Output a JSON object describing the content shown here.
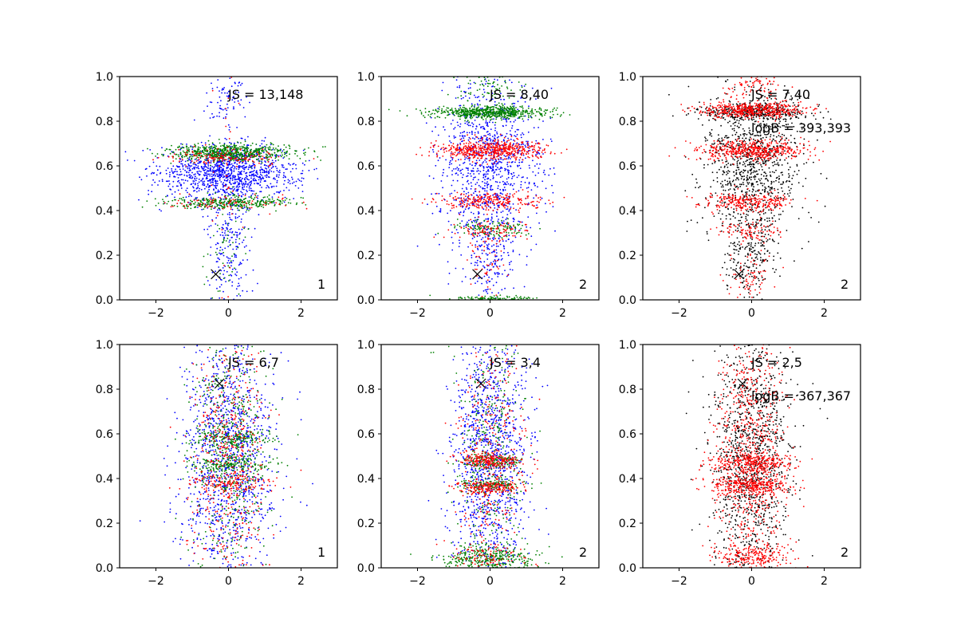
{
  "colors": {
    "blue": "#0000ff",
    "green": "#008000",
    "red": "#ff0000",
    "black": "#000000"
  },
  "chart_data": [
    {
      "type": "scatter",
      "xlim": [
        -3,
        3
      ],
      "ylim": [
        0,
        1
      ],
      "xticks": [
        -2,
        0,
        2
      ],
      "yticks": [
        0.0,
        0.2,
        0.4,
        0.6,
        0.8,
        1.0
      ],
      "xtick_labels": [
        "−2",
        "0",
        "2"
      ],
      "ytick_labels": [
        "0.0",
        "0.2",
        "0.4",
        "0.6",
        "0.8",
        "1.0"
      ],
      "annotation": "JS = 13,148",
      "annotation2": "",
      "corner_label": "1",
      "marker": {
        "x": -0.35,
        "y": 0.115,
        "symbol": "x"
      },
      "series": [
        {
          "name": "blue",
          "color": "blue",
          "clusters": [
            {
              "cy": 0.57,
              "sy": 0.06,
              "sx": 0.95,
              "n": 1100
            },
            {
              "cy": 0.3,
              "sy": 0.22,
              "sx": 0.35,
              "n": 300
            },
            {
              "cy": 0.9,
              "sy": 0.08,
              "sx": 0.3,
              "n": 80
            }
          ]
        },
        {
          "name": "green",
          "color": "green",
          "clusters": [
            {
              "cy": 0.66,
              "sy": 0.018,
              "sx": 0.85,
              "n": 650
            },
            {
              "cy": 0.435,
              "sy": 0.014,
              "sx": 0.85,
              "n": 320
            },
            {
              "cy": 0.25,
              "sy": 0.15,
              "sx": 0.3,
              "n": 60
            }
          ]
        },
        {
          "name": "red",
          "color": "red",
          "clusters": [
            {
              "cy": 0.64,
              "sy": 0.02,
              "sx": 0.8,
              "n": 140
            },
            {
              "cy": 0.43,
              "sy": 0.018,
              "sx": 0.8,
              "n": 80
            },
            {
              "cy": 0.6,
              "sy": 0.3,
              "sx": 0.3,
              "n": 40
            }
          ]
        }
      ]
    },
    {
      "type": "scatter",
      "xlim": [
        -3,
        3
      ],
      "ylim": [
        0,
        1
      ],
      "xticks": [
        -2,
        0,
        2
      ],
      "yticks": [
        0.0,
        0.2,
        0.4,
        0.6,
        0.8,
        1.0
      ],
      "xtick_labels": [
        "−2",
        "0",
        "2"
      ],
      "ytick_labels": [
        "0.0",
        "0.2",
        "0.4",
        "0.6",
        "0.8",
        "1.0"
      ],
      "annotation": "JS = 8,40",
      "annotation2": "",
      "corner_label": "2",
      "marker": {
        "x": -0.35,
        "y": 0.115,
        "symbol": "x"
      },
      "series": [
        {
          "name": "blue",
          "color": "blue",
          "clusters": [
            {
              "cy": 0.6,
              "sy": 0.18,
              "sx": 0.7,
              "n": 1000
            },
            {
              "cy": 0.2,
              "sy": 0.12,
              "sx": 0.35,
              "n": 200
            }
          ]
        },
        {
          "name": "green",
          "color": "green",
          "clusters": [
            {
              "cy": 0.84,
              "sy": 0.015,
              "sx": 0.8,
              "n": 650
            },
            {
              "cy": 0.32,
              "sy": 0.02,
              "sx": 0.5,
              "n": 120
            },
            {
              "cy": 0.005,
              "sy": 0.006,
              "sx": 0.6,
              "n": 120
            },
            {
              "cy": 0.95,
              "sy": 0.04,
              "sx": 0.5,
              "n": 80
            }
          ]
        },
        {
          "name": "red",
          "color": "red",
          "clusters": [
            {
              "cy": 0.67,
              "sy": 0.022,
              "sx": 0.75,
              "n": 550
            },
            {
              "cy": 0.44,
              "sy": 0.02,
              "sx": 0.7,
              "n": 250
            },
            {
              "cy": 0.31,
              "sy": 0.02,
              "sx": 0.5,
              "n": 90
            },
            {
              "cy": 0.2,
              "sy": 0.1,
              "sx": 0.3,
              "n": 60
            }
          ]
        }
      ]
    },
    {
      "type": "scatter",
      "xlim": [
        -3,
        3
      ],
      "ylim": [
        0,
        1
      ],
      "xticks": [
        -2,
        0,
        2
      ],
      "yticks": [
        0.0,
        0.2,
        0.4,
        0.6,
        0.8,
        1.0
      ],
      "xtick_labels": [
        "−2",
        "0",
        "2"
      ],
      "ytick_labels": [
        "0.0",
        "0.2",
        "0.4",
        "0.6",
        "0.8",
        "1.0"
      ],
      "annotation": "JS = 7,40",
      "annotation2": "logB = 393,393",
      "corner_label": "2",
      "marker": {
        "x": -0.35,
        "y": 0.115,
        "symbol": "x"
      },
      "series": [
        {
          "name": "black",
          "color": "black",
          "clusters": [
            {
              "cy": 0.6,
              "sy": 0.18,
              "sx": 0.7,
              "n": 1000
            },
            {
              "cy": 0.2,
              "sy": 0.12,
              "sx": 0.35,
              "n": 200
            },
            {
              "cy": 0.84,
              "sy": 0.02,
              "sx": 0.8,
              "n": 350
            }
          ]
        },
        {
          "name": "red",
          "color": "red",
          "clusters": [
            {
              "cy": 0.85,
              "sy": 0.018,
              "sx": 0.7,
              "n": 500
            },
            {
              "cy": 0.67,
              "sy": 0.022,
              "sx": 0.7,
              "n": 500
            },
            {
              "cy": 0.44,
              "sy": 0.02,
              "sx": 0.65,
              "n": 280
            },
            {
              "cy": 0.31,
              "sy": 0.02,
              "sx": 0.45,
              "n": 90
            },
            {
              "cy": 0.1,
              "sy": 0.08,
              "sx": 0.3,
              "n": 80
            },
            {
              "cy": 0.95,
              "sy": 0.03,
              "sx": 0.4,
              "n": 80
            }
          ]
        }
      ]
    },
    {
      "type": "scatter",
      "xlim": [
        -3,
        3
      ],
      "ylim": [
        0,
        1
      ],
      "xticks": [
        -2,
        0,
        2
      ],
      "yticks": [
        0.0,
        0.2,
        0.4,
        0.6,
        0.8,
        1.0
      ],
      "xtick_labels": [
        "−2",
        "0",
        "2"
      ],
      "ytick_labels": [
        "0.0",
        "0.2",
        "0.4",
        "0.6",
        "0.8",
        "1.0"
      ],
      "annotation": "JS = 6,7",
      "annotation2": "",
      "corner_label": "1",
      "marker": {
        "x": -0.25,
        "y": 0.825,
        "symbol": "x"
      },
      "series": [
        {
          "name": "blue",
          "color": "blue",
          "clusters": [
            {
              "cy": 0.5,
              "sy": 0.3,
              "sx": 0.65,
              "n": 1300
            }
          ]
        },
        {
          "name": "green",
          "color": "green",
          "clusters": [
            {
              "cy": 0.5,
              "sy": 0.28,
              "sx": 0.55,
              "n": 550
            },
            {
              "cy": 0.58,
              "sy": 0.02,
              "sx": 0.6,
              "n": 150
            },
            {
              "cy": 0.46,
              "sy": 0.02,
              "sx": 0.6,
              "n": 150
            }
          ]
        },
        {
          "name": "red",
          "color": "red",
          "clusters": [
            {
              "cy": 0.5,
              "sy": 0.3,
              "sx": 0.55,
              "n": 500
            },
            {
              "cy": 0.38,
              "sy": 0.02,
              "sx": 0.6,
              "n": 120
            }
          ]
        }
      ]
    },
    {
      "type": "scatter",
      "xlim": [
        -3,
        3
      ],
      "ylim": [
        0,
        1
      ],
      "xticks": [
        -2,
        0,
        2
      ],
      "yticks": [
        0.0,
        0.2,
        0.4,
        0.6,
        0.8,
        1.0
      ],
      "xtick_labels": [
        "−2",
        "0",
        "2"
      ],
      "ytick_labels": [
        "0.0",
        "0.2",
        "0.4",
        "0.6",
        "0.8",
        "1.0"
      ],
      "annotation": "JS = 3,4",
      "annotation2": "",
      "corner_label": "2",
      "marker": {
        "x": -0.25,
        "y": 0.825,
        "symbol": "x"
      },
      "series": [
        {
          "name": "blue",
          "color": "blue",
          "clusters": [
            {
              "cy": 0.5,
              "sy": 0.3,
              "sx": 0.55,
              "n": 1200
            }
          ]
        },
        {
          "name": "green",
          "color": "green",
          "clusters": [
            {
              "cy": 0.04,
              "sy": 0.03,
              "sx": 0.65,
              "n": 350
            },
            {
              "cy": 0.5,
              "sy": 0.28,
              "sx": 0.45,
              "n": 350
            },
            {
              "cy": 0.48,
              "sy": 0.015,
              "sx": 0.45,
              "n": 120
            },
            {
              "cy": 0.37,
              "sy": 0.015,
              "sx": 0.45,
              "n": 120
            }
          ]
        },
        {
          "name": "red",
          "color": "red",
          "clusters": [
            {
              "cy": 0.48,
              "sy": 0.015,
              "sx": 0.45,
              "n": 200
            },
            {
              "cy": 0.36,
              "sy": 0.015,
              "sx": 0.45,
              "n": 180
            },
            {
              "cy": 0.5,
              "sy": 0.3,
              "sx": 0.45,
              "n": 350
            },
            {
              "cy": 0.05,
              "sy": 0.03,
              "sx": 0.5,
              "n": 80
            }
          ]
        }
      ]
    },
    {
      "type": "scatter",
      "xlim": [
        -3,
        3
      ],
      "ylim": [
        0,
        1
      ],
      "xticks": [
        -2,
        0,
        2
      ],
      "yticks": [
        0.0,
        0.2,
        0.4,
        0.6,
        0.8,
        1.0
      ],
      "xtick_labels": [
        "−2",
        "0",
        "2"
      ],
      "ytick_labels": [
        "0.0",
        "0.2",
        "0.4",
        "0.6",
        "0.8",
        "1.0"
      ],
      "annotation": "JS = 2,5",
      "annotation2": "logB = 367,367",
      "corner_label": "2",
      "marker": {
        "x": -0.25,
        "y": 0.825,
        "symbol": "x"
      },
      "series": [
        {
          "name": "black",
          "color": "black",
          "clusters": [
            {
              "cy": 0.5,
              "sy": 0.3,
              "sx": 0.55,
              "n": 1200
            }
          ]
        },
        {
          "name": "red",
          "color": "red",
          "clusters": [
            {
              "cy": 0.5,
              "sy": 0.3,
              "sx": 0.5,
              "n": 800
            },
            {
              "cy": 0.47,
              "sy": 0.02,
              "sx": 0.55,
              "n": 300
            },
            {
              "cy": 0.37,
              "sy": 0.02,
              "sx": 0.55,
              "n": 300
            },
            {
              "cy": 0.05,
              "sy": 0.03,
              "sx": 0.55,
              "n": 200
            }
          ]
        }
      ]
    }
  ]
}
